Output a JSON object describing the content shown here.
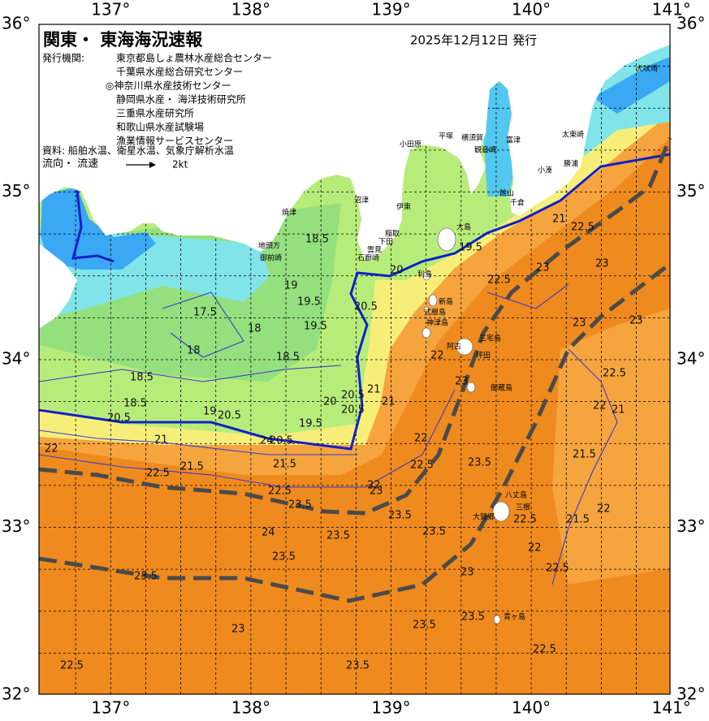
{
  "header": {
    "title": "関東・ 東海海況速報",
    "date": "2025年12月12日 発行",
    "publisher_label": "発行機関:",
    "publishers": [
      "東京都島しょ農林水産総合センター",
      "千葉県水産総合研究センター",
      "◎神奈川県水産技術センター",
      "静岡県水産・ 海洋技術研究所",
      "三重県水産研究所",
      "和歌山県水産試験場",
      "漁業情報サービスセンター"
    ],
    "source": "資料: 船舶水温、衛星水温、気象庁解析水温",
    "legend_label": "流向・ 流速",
    "legend_speed": "2kt"
  },
  "map": {
    "lon_labels": [
      {
        "value": 137,
        "label": "137°"
      },
      {
        "value": 138,
        "label": "138°"
      },
      {
        "value": 139,
        "label": "139°"
      },
      {
        "value": 140,
        "label": "140°"
      },
      {
        "value": 141,
        "label": "141°"
      }
    ],
    "lat_labels": [
      {
        "value": 36,
        "label": "36°"
      },
      {
        "value": 35,
        "label": "35°"
      },
      {
        "value": 34,
        "label": "34°"
      },
      {
        "value": 33,
        "label": "33°"
      },
      {
        "value": 32,
        "label": "32°"
      }
    ],
    "place_names": [
      "犬吠埼",
      "太東崎",
      "勝浦",
      "小湊",
      "館山",
      "千倉",
      "富津",
      "横須賀",
      "観音崎",
      "平塚",
      "小田原",
      "沼津",
      "焼津",
      "地頭方",
      "御前崎",
      "伊東",
      "稲取",
      "下田",
      "雲見",
      "石廊崎",
      "大島",
      "利島",
      "新島",
      "式根島",
      "神津島",
      "三宅島",
      "坪田",
      "阿古",
      "御蔵島",
      "八丈島",
      "三根",
      "大賀郷",
      "青ヶ島"
    ],
    "contour_labels": [
      "18.5",
      "19",
      "19.5",
      "20.5",
      "20",
      "17.5",
      "18",
      "18",
      "19.5",
      "18.5",
      "18.5",
      "18.5",
      "20.5",
      "19",
      "20.5",
      "19.5",
      "20",
      "20.5",
      "21",
      "20.5",
      "22",
      "23",
      "21",
      "22",
      "24",
      "20.5",
      "21.5",
      "22.5",
      "21.5",
      "22.5",
      "23.5",
      "22",
      "23",
      "22",
      "22.5",
      "23.5",
      "23.5",
      "23.5",
      "24",
      "23.5",
      "23.5",
      "23.5",
      "23",
      "22.5",
      "23.5",
      "23.5",
      "23.5",
      "23",
      "22.5",
      "22",
      "22.5",
      "21.5",
      "22",
      "21.5",
      "22",
      "21",
      "22.5",
      "23",
      "23",
      "23",
      "22.5",
      "22.5",
      "21",
      "19.5",
      "21",
      "23",
      "22.5"
    ]
  }
}
